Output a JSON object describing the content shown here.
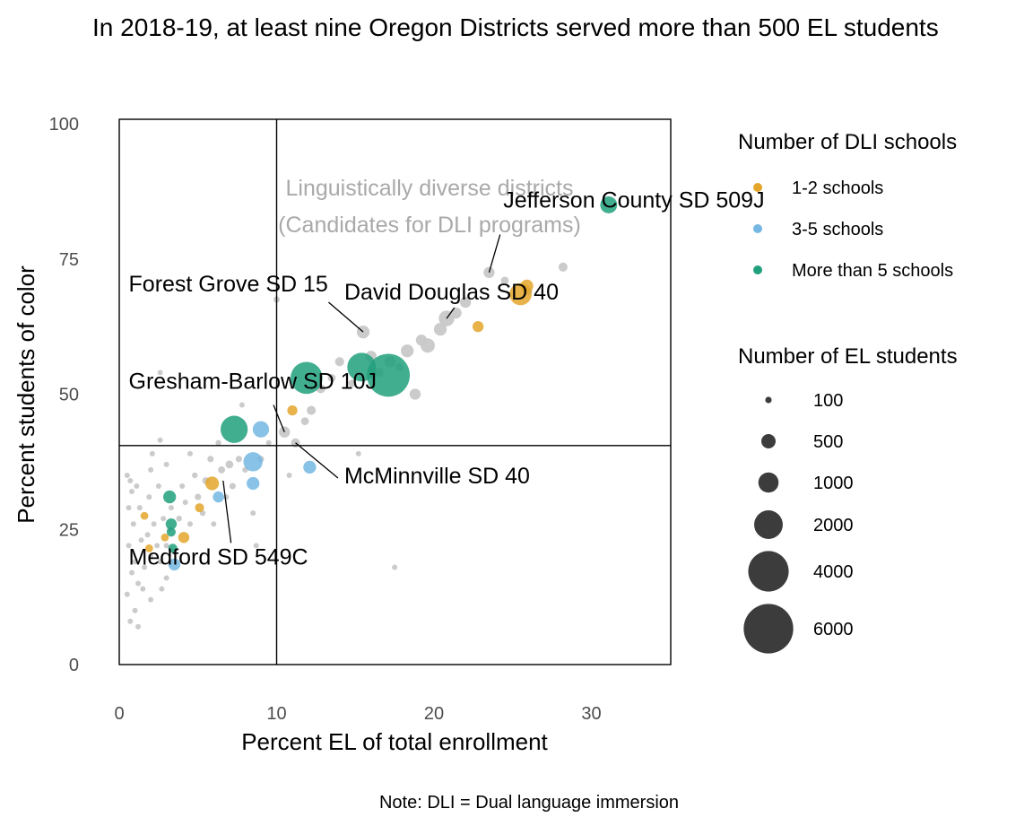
{
  "chart_data": {
    "type": "scatter",
    "title": "In 2018-19, at least nine Oregon Districts served more than 500 EL students",
    "xlabel": "Percent EL of total enrollment",
    "ylabel": "Percent students of color",
    "caption": "Note: DLI = Dual language immersion",
    "xlim": [
      0,
      35
    ],
    "ylim": [
      0,
      100
    ],
    "xticks": [
      0,
      10,
      20,
      30
    ],
    "yticks": [
      0,
      25,
      50,
      75,
      100
    ],
    "reference_lines": {
      "x": 10,
      "y": 40.5
    },
    "quadrant_label": [
      "Linguistically diverse districts",
      "(Candidates for DLI programs)"
    ],
    "grid": false,
    "legend_position": "right",
    "colors": {
      "none": "#c8c8c8",
      "1-2 schools": "#e3a62a",
      "3-5 schools": "#74b7e3",
      "More than 5 schools": "#21a07d",
      "legend_size_marker": "#3c3c3c"
    },
    "legend_color": {
      "title": "Number of DLI schools",
      "entries": [
        {
          "label": "1-2 schools",
          "group": "1-2 schools"
        },
        {
          "label": "3-5 schools",
          "group": "3-5 schools"
        },
        {
          "label": "More than 5 schools",
          "group": "More than 5 schools"
        }
      ]
    },
    "legend_size": {
      "title": "Number of EL students",
      "entries": [
        {
          "label": "100",
          "value": 100
        },
        {
          "label": "500",
          "value": 500
        },
        {
          "label": "1000",
          "value": 1000
        },
        {
          "label": "2000",
          "value": 2000
        },
        {
          "label": "4000",
          "value": 4000
        },
        {
          "label": "6000",
          "value": 6000
        }
      ]
    },
    "annotations": [
      {
        "label": "Jefferson County SD 509J",
        "point": [
          23.5,
          72.5
        ],
        "text_at": [
          24.4,
          84.5
        ],
        "anchor": [
          24.2,
          79.5
        ]
      },
      {
        "label": "Forest Grove SD 15",
        "point": [
          15.5,
          61.5
        ],
        "text_at": [
          0.6,
          69
        ],
        "anchor": [
          13.3,
          67
        ]
      },
      {
        "label": "David Douglas SD 40",
        "point": [
          20.8,
          64
        ],
        "text_at": [
          14.3,
          67.5
        ],
        "anchor": [
          21.3,
          66
        ]
      },
      {
        "label": "Gresham-Barlow SD 10J",
        "point": [
          10.5,
          43
        ],
        "text_at": [
          0.6,
          51
        ],
        "anchor": [
          9.8,
          48
        ]
      },
      {
        "label": "McMinnville SD 40",
        "point": [
          11.2,
          41
        ],
        "text_at": [
          14.3,
          33.5
        ],
        "anchor": [
          13.9,
          34.5
        ]
      },
      {
        "label": "Medford SD 549C",
        "point": [
          6.6,
          34
        ],
        "text_at": [
          0.6,
          18.5
        ],
        "anchor": [
          7.1,
          22.5
        ]
      }
    ],
    "points": [
      {
        "x": 0.6,
        "y": 22,
        "n": 15,
        "group": "none"
      },
      {
        "x": 0.8,
        "y": 17,
        "n": 15,
        "group": "none"
      },
      {
        "x": 0.5,
        "y": 13,
        "n": 10,
        "group": "none"
      },
      {
        "x": 1.0,
        "y": 19,
        "n": 20,
        "group": "none"
      },
      {
        "x": 1.2,
        "y": 15,
        "n": 10,
        "group": "none"
      },
      {
        "x": 0.9,
        "y": 26,
        "n": 15,
        "group": "none"
      },
      {
        "x": 1.4,
        "y": 23,
        "n": 20,
        "group": "none"
      },
      {
        "x": 1.3,
        "y": 29,
        "n": 15,
        "group": "none"
      },
      {
        "x": 1.6,
        "y": 18,
        "n": 30,
        "group": "none"
      },
      {
        "x": 1.8,
        "y": 24,
        "n": 15,
        "group": "none"
      },
      {
        "x": 2.0,
        "y": 20,
        "n": 20,
        "group": "none"
      },
      {
        "x": 1.5,
        "y": 14,
        "n": 10,
        "group": "none"
      },
      {
        "x": 1.0,
        "y": 10,
        "n": 5,
        "group": "none"
      },
      {
        "x": 1.2,
        "y": 7,
        "n": 5,
        "group": "none"
      },
      {
        "x": 2.2,
        "y": 26,
        "n": 30,
        "group": "none"
      },
      {
        "x": 2.4,
        "y": 22,
        "n": 20,
        "group": "none"
      },
      {
        "x": 1.9,
        "y": 31,
        "n": 15,
        "group": "none"
      },
      {
        "x": 2.6,
        "y": 19,
        "n": 40,
        "group": "none"
      },
      {
        "x": 3.0,
        "y": 22,
        "n": 50,
        "group": "none"
      },
      {
        "x": 2.8,
        "y": 27,
        "n": 30,
        "group": "none"
      },
      {
        "x": 3.2,
        "y": 25,
        "n": 60,
        "group": "none"
      },
      {
        "x": 3.5,
        "y": 21,
        "n": 40,
        "group": "none"
      },
      {
        "x": 3.8,
        "y": 27,
        "n": 80,
        "group": "none"
      },
      {
        "x": 4.2,
        "y": 30,
        "n": 70,
        "group": "none"
      },
      {
        "x": 4.5,
        "y": 26,
        "n": 60,
        "group": "none"
      },
      {
        "x": 4.0,
        "y": 33,
        "n": 40,
        "group": "none"
      },
      {
        "x": 4.8,
        "y": 35,
        "n": 80,
        "group": "none"
      },
      {
        "x": 5.0,
        "y": 31,
        "n": 100,
        "group": "none"
      },
      {
        "x": 5.3,
        "y": 28,
        "n": 80,
        "group": "none"
      },
      {
        "x": 5.5,
        "y": 34,
        "n": 120,
        "group": "none"
      },
      {
        "x": 5.8,
        "y": 38,
        "n": 100,
        "group": "none"
      },
      {
        "x": 6.0,
        "y": 26,
        "n": 60,
        "group": "none"
      },
      {
        "x": 6.3,
        "y": 41,
        "n": 80,
        "group": "none"
      },
      {
        "x": 6.5,
        "y": 36,
        "n": 120,
        "group": "none"
      },
      {
        "x": 6.8,
        "y": 31,
        "n": 60,
        "group": "none"
      },
      {
        "x": 7.0,
        "y": 37,
        "n": 150,
        "group": "none"
      },
      {
        "x": 7.2,
        "y": 33,
        "n": 100,
        "group": "none"
      },
      {
        "x": 7.6,
        "y": 38,
        "n": 100,
        "group": "none"
      },
      {
        "x": 7.8,
        "y": 48,
        "n": 60,
        "group": "none"
      },
      {
        "x": 8.0,
        "y": 36,
        "n": 80,
        "group": "none"
      },
      {
        "x": 8.5,
        "y": 28,
        "n": 60,
        "group": "none"
      },
      {
        "x": 8.7,
        "y": 22,
        "n": 30,
        "group": "none"
      },
      {
        "x": 9.0,
        "y": 38,
        "n": 100,
        "group": "none"
      },
      {
        "x": 9.5,
        "y": 41,
        "n": 60,
        "group": "none"
      },
      {
        "x": 2.5,
        "y": 33,
        "n": 40,
        "group": "none"
      },
      {
        "x": 3.3,
        "y": 29,
        "n": 40,
        "group": "none"
      },
      {
        "x": 2.0,
        "y": 36,
        "n": 30,
        "group": "none"
      },
      {
        "x": 2.1,
        "y": 39,
        "n": 30,
        "group": "none"
      },
      {
        "x": 3.0,
        "y": 37,
        "n": 20,
        "group": "none"
      },
      {
        "x": 4.5,
        "y": 39,
        "n": 20,
        "group": "none"
      },
      {
        "x": 3.0,
        "y": 16,
        "n": 30,
        "group": "none"
      },
      {
        "x": 2.7,
        "y": 14,
        "n": 20,
        "group": "none"
      },
      {
        "x": 2.0,
        "y": 12,
        "n": 15,
        "group": "none"
      },
      {
        "x": 0.7,
        "y": 8,
        "n": 5,
        "group": "none"
      },
      {
        "x": 1.1,
        "y": 33,
        "n": 10,
        "group": "none"
      },
      {
        "x": 0.7,
        "y": 34,
        "n": 10,
        "group": "none"
      },
      {
        "x": 0.6,
        "y": 29,
        "n": 10,
        "group": "none"
      },
      {
        "x": 0.5,
        "y": 35,
        "n": 10,
        "group": "none"
      },
      {
        "x": 0.8,
        "y": 32,
        "n": 10,
        "group": "none"
      },
      {
        "x": 2.6,
        "y": 54,
        "n": 10,
        "group": "none"
      },
      {
        "x": 10.0,
        "y": 67.5,
        "n": 100,
        "group": "none"
      },
      {
        "x": 10.8,
        "y": 35,
        "n": 20,
        "group": "none"
      },
      {
        "x": 10.5,
        "y": 43,
        "n": 300,
        "group": "none"
      },
      {
        "x": 11.2,
        "y": 41,
        "n": 200,
        "group": "none"
      },
      {
        "x": 11.8,
        "y": 45,
        "n": 150,
        "group": "none"
      },
      {
        "x": 12.2,
        "y": 47,
        "n": 200,
        "group": "none"
      },
      {
        "x": 12.8,
        "y": 51,
        "n": 200,
        "group": "none"
      },
      {
        "x": 13.5,
        "y": 53,
        "n": 150,
        "group": "none"
      },
      {
        "x": 14.0,
        "y": 56,
        "n": 200,
        "group": "none"
      },
      {
        "x": 14.8,
        "y": 52,
        "n": 150,
        "group": "none"
      },
      {
        "x": 15.5,
        "y": 61.5,
        "n": 400,
        "group": "none"
      },
      {
        "x": 16.0,
        "y": 57,
        "n": 300,
        "group": "none"
      },
      {
        "x": 16.5,
        "y": 54,
        "n": 200,
        "group": "none"
      },
      {
        "x": 17.2,
        "y": 56,
        "n": 300,
        "group": "none"
      },
      {
        "x": 17.8,
        "y": 55,
        "n": 150,
        "group": "none"
      },
      {
        "x": 18.3,
        "y": 58,
        "n": 400,
        "group": "none"
      },
      {
        "x": 18.8,
        "y": 50,
        "n": 300,
        "group": "none"
      },
      {
        "x": 19.2,
        "y": 60,
        "n": 300,
        "group": "none"
      },
      {
        "x": 19.6,
        "y": 59,
        "n": 500,
        "group": "none"
      },
      {
        "x": 20.4,
        "y": 62,
        "n": 400,
        "group": "none"
      },
      {
        "x": 20.8,
        "y": 64,
        "n": 600,
        "group": "none"
      },
      {
        "x": 21.4,
        "y": 65,
        "n": 300,
        "group": "none"
      },
      {
        "x": 22.0,
        "y": 67,
        "n": 300,
        "group": "none"
      },
      {
        "x": 23.5,
        "y": 72.5,
        "n": 300,
        "group": "none"
      },
      {
        "x": 24.5,
        "y": 71,
        "n": 150,
        "group": "none"
      },
      {
        "x": 28.2,
        "y": 73.5,
        "n": 200,
        "group": "none"
      },
      {
        "x": 26.0,
        "y": 69,
        "n": 150,
        "group": "none"
      },
      {
        "x": 15.2,
        "y": 39,
        "n": 20,
        "group": "none"
      },
      {
        "x": 17.5,
        "y": 18,
        "n": 10,
        "group": "none"
      },
      {
        "x": 2.6,
        "y": 41.5,
        "n": 10,
        "group": "none"
      },
      {
        "x": 1.6,
        "y": 27.5,
        "n": 150,
        "group": "1-2 schools"
      },
      {
        "x": 1.9,
        "y": 21.5,
        "n": 150,
        "group": "1-2 schools"
      },
      {
        "x": 2.9,
        "y": 23.5,
        "n": 150,
        "group": "1-2 schools"
      },
      {
        "x": 4.1,
        "y": 23.5,
        "n": 300,
        "group": "1-2 schools"
      },
      {
        "x": 5.1,
        "y": 29,
        "n": 200,
        "group": "1-2 schools"
      },
      {
        "x": 5.9,
        "y": 33.5,
        "n": 450,
        "group": "1-2 schools"
      },
      {
        "x": 11.0,
        "y": 47,
        "n": 250,
        "group": "1-2 schools"
      },
      {
        "x": 22.8,
        "y": 62.5,
        "n": 300,
        "group": "1-2 schools"
      },
      {
        "x": 25.9,
        "y": 70,
        "n": 400,
        "group": "1-2 schools"
      },
      {
        "x": 25.5,
        "y": 68.5,
        "n": 1200,
        "group": "1-2 schools"
      },
      {
        "x": 3.5,
        "y": 18.5,
        "n": 350,
        "group": "3-5 schools"
      },
      {
        "x": 6.3,
        "y": 31,
        "n": 300,
        "group": "3-5 schools"
      },
      {
        "x": 8.5,
        "y": 33.5,
        "n": 400,
        "group": "3-5 schools"
      },
      {
        "x": 8.5,
        "y": 37.5,
        "n": 900,
        "group": "3-5 schools"
      },
      {
        "x": 9.0,
        "y": 43.5,
        "n": 650,
        "group": "3-5 schools"
      },
      {
        "x": 12.1,
        "y": 36.5,
        "n": 400,
        "group": "3-5 schools"
      },
      {
        "x": 3.3,
        "y": 26,
        "n": 300,
        "group": "More than 5 schools"
      },
      {
        "x": 3.3,
        "y": 24.5,
        "n": 200,
        "group": "More than 5 schools"
      },
      {
        "x": 3.4,
        "y": 21.5,
        "n": 200,
        "group": "More than 5 schools"
      },
      {
        "x": 3.2,
        "y": 31,
        "n": 400,
        "group": "More than 5 schools"
      },
      {
        "x": 7.3,
        "y": 43.5,
        "n": 1800,
        "group": "More than 5 schools"
      },
      {
        "x": 11.9,
        "y": 53,
        "n": 2500,
        "group": "More than 5 schools"
      },
      {
        "x": 15.4,
        "y": 55,
        "n": 2000,
        "group": "More than 5 schools"
      },
      {
        "x": 17.1,
        "y": 53.5,
        "n": 4500,
        "group": "More than 5 schools"
      },
      {
        "x": 31.1,
        "y": 85,
        "n": 700,
        "group": "More than 5 schools"
      }
    ]
  }
}
